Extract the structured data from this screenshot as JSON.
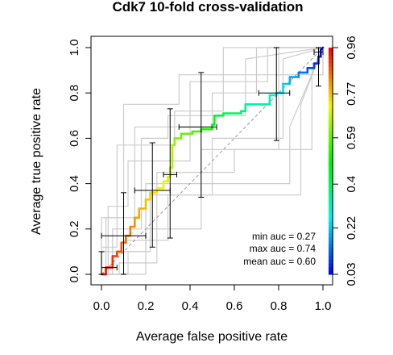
{
  "chart_data": {
    "type": "line",
    "title": "Cdk7 10-fold cross-validation",
    "xlabel": "Average false positive rate",
    "ylabel": "Average true positive rate",
    "xlim": [
      0,
      1
    ],
    "ylim": [
      0,
      1
    ],
    "x_ticks": [
      "0.0",
      "0.2",
      "0.4",
      "0.6",
      "0.8",
      "1.0"
    ],
    "y_ticks": [
      "0.0",
      "0.2",
      "0.4",
      "0.6",
      "0.8",
      "1.0"
    ],
    "x_tick_values": [
      0,
      0.2,
      0.4,
      0.6,
      0.8,
      1.0
    ],
    "y_tick_values": [
      0,
      0.2,
      0.4,
      0.6,
      0.8,
      1.0
    ],
    "colorbar": {
      "tick_labels": [
        "0.03",
        "0.22",
        "0.4",
        "0.59",
        "0.77",
        "0.96"
      ],
      "tick_values": [
        0.03,
        0.22,
        0.4,
        0.59,
        0.77,
        0.96
      ],
      "range": [
        0.03,
        0.96
      ],
      "colormap": "rainbow (red high, blue low)"
    },
    "grid": false,
    "diagonal_reference": true,
    "legend_position": "bottom-right",
    "annotations": [
      "min auc = 0.27",
      "max auc = 0.74",
      "mean auc = 0.60"
    ],
    "average_roc": {
      "name": "average",
      "x": [
        0,
        0.02,
        0.02,
        0.05,
        0.05,
        0.07,
        0.07,
        0.09,
        0.09,
        0.11,
        0.11,
        0.13,
        0.13,
        0.15,
        0.15,
        0.17,
        0.17,
        0.2,
        0.2,
        0.22,
        0.22,
        0.25,
        0.25,
        0.28,
        0.28,
        0.3,
        0.3,
        0.31,
        0.31,
        0.32,
        0.32,
        0.33,
        0.33,
        0.36,
        0.36,
        0.41,
        0.41,
        0.45,
        0.45,
        0.5,
        0.5,
        0.51,
        0.51,
        0.55,
        0.55,
        0.63,
        0.63,
        0.65,
        0.65,
        0.76,
        0.76,
        0.79,
        0.79,
        0.82,
        0.82,
        0.85,
        0.85,
        0.89,
        0.89,
        0.93,
        0.93,
        0.96,
        0.96,
        0.98,
        0.98,
        0.99,
        0.99,
        1.0
      ],
      "y": [
        0,
        0,
        0.03,
        0.03,
        0.08,
        0.08,
        0.1,
        0.1,
        0.14,
        0.14,
        0.17,
        0.17,
        0.21,
        0.21,
        0.25,
        0.25,
        0.29,
        0.29,
        0.33,
        0.33,
        0.36,
        0.36,
        0.38,
        0.38,
        0.41,
        0.41,
        0.43,
        0.43,
        0.47,
        0.47,
        0.57,
        0.57,
        0.6,
        0.6,
        0.62,
        0.62,
        0.63,
        0.63,
        0.64,
        0.64,
        0.66,
        0.66,
        0.7,
        0.7,
        0.71,
        0.71,
        0.72,
        0.72,
        0.75,
        0.75,
        0.79,
        0.79,
        0.8,
        0.8,
        0.84,
        0.84,
        0.87,
        0.87,
        0.89,
        0.89,
        0.91,
        0.91,
        0.93,
        0.93,
        0.96,
        0.96,
        0.99,
        1.0
      ],
      "cutoff": [
        0.96,
        0.95,
        0.94,
        0.92,
        0.91,
        0.9,
        0.89,
        0.88,
        0.87,
        0.86,
        0.85,
        0.84,
        0.83,
        0.82,
        0.81,
        0.8,
        0.79,
        0.78,
        0.77,
        0.76,
        0.75,
        0.74,
        0.73,
        0.72,
        0.71,
        0.7,
        0.69,
        0.68,
        0.67,
        0.66,
        0.65,
        0.63,
        0.62,
        0.6,
        0.59,
        0.57,
        0.55,
        0.53,
        0.52,
        0.5,
        0.48,
        0.47,
        0.45,
        0.43,
        0.41,
        0.4,
        0.38,
        0.36,
        0.34,
        0.32,
        0.3,
        0.28,
        0.26,
        0.24,
        0.22,
        0.2,
        0.18,
        0.16,
        0.14,
        0.12,
        0.1,
        0.09,
        0.07,
        0.06,
        0.05,
        0.04,
        0.03,
        0.03
      ]
    },
    "error_bars": [
      {
        "x": 0.0,
        "y": 0.03,
        "x_lo": 0.0,
        "x_hi": 0.07,
        "y_lo": 0.0,
        "y_hi": 0.1
      },
      {
        "x": 0.1,
        "y": 0.17,
        "x_lo": 0.0,
        "x_hi": 0.2,
        "y_lo": 0.0,
        "y_hi": 0.36
      },
      {
        "x": 0.23,
        "y": 0.37,
        "x_lo": 0.15,
        "x_hi": 0.31,
        "y_lo": 0.12,
        "y_hi": 0.58
      },
      {
        "x": 0.31,
        "y": 0.44,
        "x_lo": 0.28,
        "x_hi": 0.34,
        "y_lo": 0.16,
        "y_hi": 0.73
      },
      {
        "x": 0.45,
        "y": 0.65,
        "x_lo": 0.35,
        "x_hi": 0.52,
        "y_lo": 0.34,
        "y_hi": 0.89
      },
      {
        "x": 0.79,
        "y": 0.8,
        "x_lo": 0.71,
        "x_hi": 0.85,
        "y_lo": 0.59,
        "y_hi": 1.0
      },
      {
        "x": 0.98,
        "y": 0.98,
        "x_lo": 0.96,
        "x_hi": 1.0,
        "y_lo": 0.83,
        "y_hi": 1.0
      }
    ],
    "fold_curves": [
      {
        "x": [
          0,
          0.02,
          0.02,
          0.1,
          0.1,
          0.35,
          0.35,
          1.0,
          1.0
        ],
        "y": [
          0,
          0,
          0.25,
          0.25,
          0.75,
          0.75,
          0.88,
          0.88,
          1.0
        ]
      },
      {
        "x": [
          0,
          0.0,
          0.2,
          0.2,
          0.45,
          0.45,
          0.8,
          0.8,
          1.0
        ],
        "y": [
          0,
          0.1,
          0.1,
          0.4,
          0.4,
          0.55,
          0.55,
          1.0,
          1.0
        ]
      },
      {
        "x": [
          0,
          0.05,
          0.05,
          0.18,
          0.18,
          0.3,
          0.3,
          0.65,
          0.65,
          1.0
        ],
        "y": [
          0,
          0,
          0.2,
          0.2,
          0.6,
          0.6,
          0.7,
          0.7,
          0.95,
          1.0
        ]
      },
      {
        "x": [
          0,
          0.1,
          0.1,
          0.3,
          0.3,
          0.9,
          0.9,
          1.0
        ],
        "y": [
          0,
          0,
          0.15,
          0.15,
          0.35,
          0.35,
          0.75,
          1.0
        ]
      },
      {
        "x": [
          0,
          0.0,
          0.15,
          0.15,
          0.5,
          0.5,
          0.7,
          0.7,
          1.0
        ],
        "y": [
          0,
          0.25,
          0.25,
          0.65,
          0.65,
          0.8,
          0.8,
          1.0,
          1.0
        ]
      },
      {
        "x": [
          0,
          0.08,
          0.08,
          0.25,
          0.25,
          0.6,
          0.6,
          0.95,
          0.95,
          1.0
        ],
        "y": [
          0,
          0,
          0.05,
          0.05,
          0.45,
          0.45,
          0.55,
          0.55,
          0.9,
          1.0
        ]
      },
      {
        "x": [
          0,
          0.03,
          0.03,
          0.12,
          0.12,
          0.4,
          0.4,
          0.75,
          0.75,
          1.0
        ],
        "y": [
          0,
          0,
          0.3,
          0.3,
          0.5,
          0.5,
          0.85,
          0.85,
          1.0,
          1.0
        ]
      },
      {
        "x": [
          0,
          0.2,
          0.2,
          0.45,
          0.45,
          0.85,
          0.85,
          1.0
        ],
        "y": [
          0,
          0,
          0.2,
          0.2,
          0.4,
          0.4,
          0.65,
          1.0
        ]
      },
      {
        "x": [
          0,
          0.0,
          0.07,
          0.07,
          0.33,
          0.33,
          0.55,
          0.55,
          1.0
        ],
        "y": [
          0,
          0.12,
          0.12,
          0.57,
          0.57,
          0.72,
          0.72,
          1.0,
          1.0
        ]
      },
      {
        "x": [
          0,
          0.12,
          0.12,
          0.22,
          0.22,
          0.5,
          0.5,
          0.82,
          0.82,
          1.0
        ],
        "y": [
          0,
          0,
          0.1,
          0.1,
          0.35,
          0.35,
          0.6,
          0.6,
          0.95,
          1.0
        ]
      }
    ]
  }
}
